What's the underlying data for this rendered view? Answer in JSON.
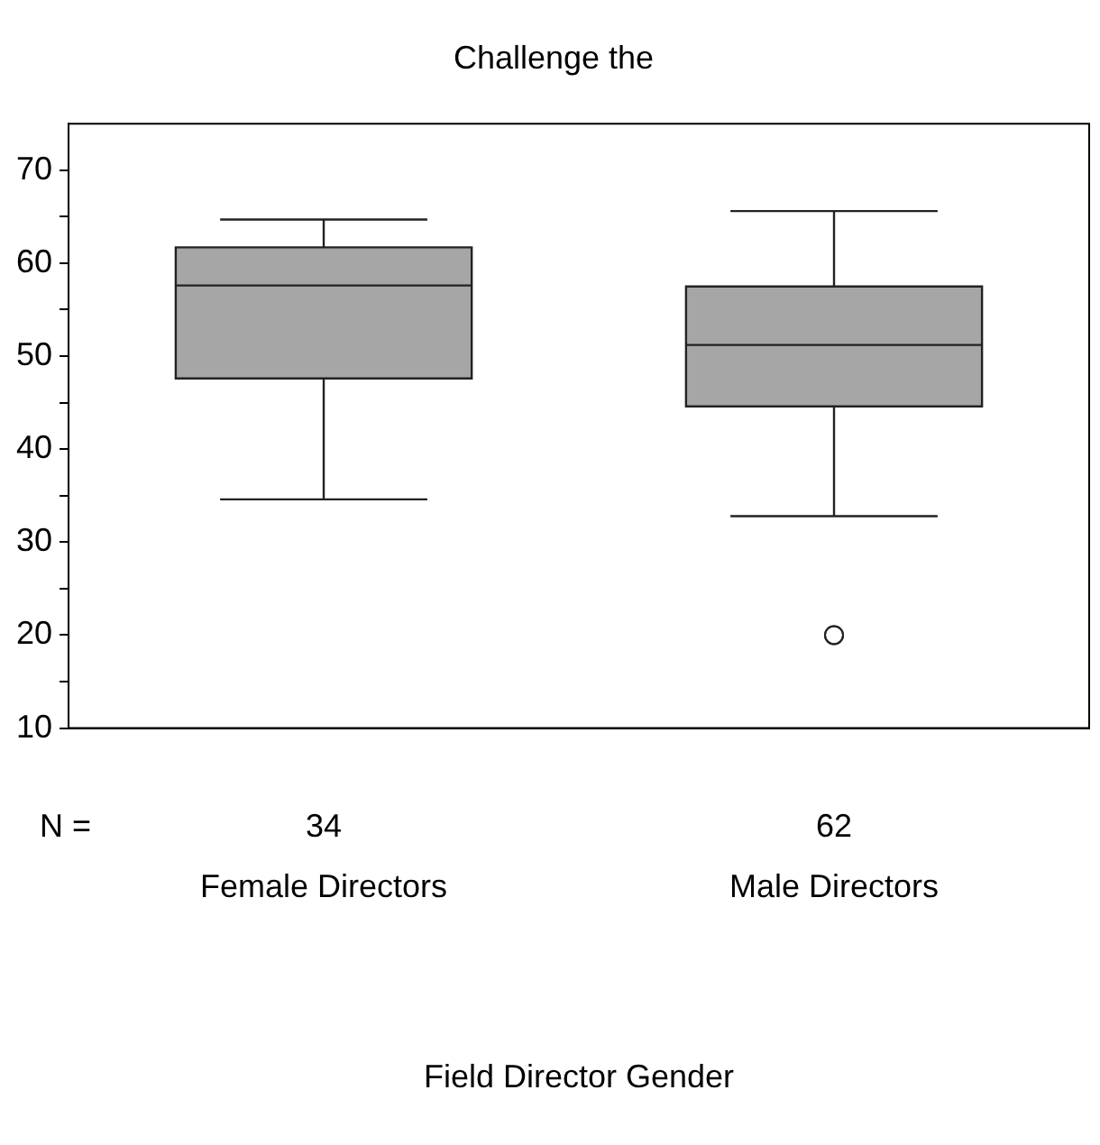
{
  "chart_data": {
    "type": "box",
    "title": "Challenge the",
    "xlabel": "Field Director Gender",
    "categories": [
      "Female Directors",
      "Male Directors"
    ],
    "color": "#a6a6a6",
    "boxes": [
      {
        "low": 34.6,
        "q1": 47.6,
        "median": 57.6,
        "q3": 61.7,
        "high": 64.7
      },
      {
        "low": 32.8,
        "q1": 44.6,
        "median": 51.2,
        "q3": 57.5,
        "high": 65.6,
        "outliers": [
          20,
          20
        ]
      }
    ],
    "ylim": [
      10,
      75
    ],
    "yticks": [
      10,
      {
        "value": 15,
        "label": null
      },
      20,
      {
        "value": 25,
        "label": null
      },
      30,
      {
        "value": 35,
        "label": null
      },
      40,
      {
        "value": 45,
        "label": null
      },
      50,
      {
        "value": 55,
        "label": null
      },
      60,
      {
        "value": 65,
        "label": null
      },
      70
    ],
    "grid": false,
    "legend": false,
    "annotations": [
      "N =",
      "34",
      "62"
    ]
  }
}
